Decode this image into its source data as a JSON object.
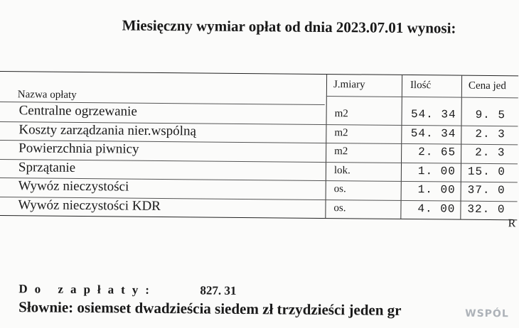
{
  "header": {
    "title": "Miesięczny wymiar opłat od dnia 2023.07.01 wynosi:"
  },
  "table": {
    "columns": [
      "Nazwa opłaty",
      "J.miary",
      "Ilość",
      "Cena jed"
    ],
    "rows": [
      [
        "Centralne ogrzewanie",
        "m2",
        "54. 34",
        "9. 5"
      ],
      [
        "Koszty zarządzania nier.wspólną",
        "m2",
        "54. 34",
        "2. 3"
      ],
      [
        "Powierzchnia piwnicy",
        "m2",
        "2. 65",
        "2. 3"
      ],
      [
        "Sprzątanie",
        "lok.",
        "1. 00",
        "15. 0"
      ],
      [
        "Wywóz nieczystości",
        "os.",
        "1. 00",
        "37. 0"
      ],
      [
        "Wywóz nieczystości KDR",
        "os.",
        "4. 00",
        "32. 0"
      ]
    ],
    "continuation": "R"
  },
  "summary": {
    "due_label": "Do zapłaty:",
    "due_amount": "827. 31",
    "in_words": "Słownie: osiemset dwadzieścia siedem zł trzydzieści jeden gr"
  },
  "stamp": "WSPÓL"
}
